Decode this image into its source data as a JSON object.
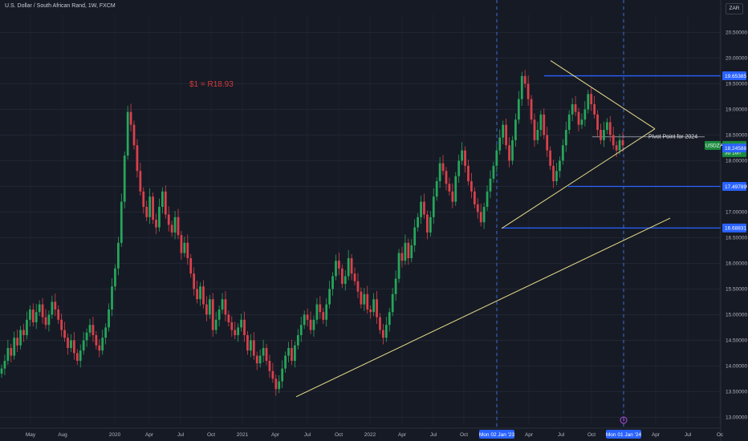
{
  "header": {
    "title": "U.S. Dollar / South African Rand, 1W, FXCM",
    "currency": "ZAR"
  },
  "colors": {
    "background": "#161a25",
    "up": "#26a65b",
    "down": "#d9414b",
    "trendline": "#e6dc8a",
    "level": "#2962ff",
    "tag": "#2962ff",
    "price_tag": "#1b8a3e",
    "annotation_red": "#d43a3a"
  },
  "chart_data": {
    "type": "candlestick",
    "ylim": [
      12.85,
      20.85
    ],
    "y_ticks": [
      "20.50000",
      "20.00000",
      "19.50000",
      "19.00000",
      "18.50000",
      "18.00000",
      "17.50000",
      "17.00000",
      "16.50000",
      "16.00000",
      "15.50000",
      "15.00000",
      "14.50000",
      "14.00000",
      "13.50000",
      "13.00000"
    ],
    "x_ticks": [
      "May",
      "Aug",
      "2020",
      "Apr",
      "Jul",
      "Oct",
      "2021",
      "Apr",
      "Jul",
      "Oct",
      "2022",
      "Apr",
      "Jul",
      "Oct",
      "Mon 02 Jan '23",
      "Apr",
      "Jul",
      "Oct",
      "Mon 01 Jan '24",
      "Apr",
      "Jul",
      "Oc"
    ],
    "highlighted_x_ticks": [
      "Mon 02 Jan '23",
      "Mon 01 Jan '24"
    ],
    "horizontal_levels": [
      19.65385,
      17.49789,
      16.68831
    ],
    "level_labels": [
      "19.65385",
      "17.49789",
      "16.68831"
    ],
    "pivot_level": 18.24588,
    "pivot_label": "18.24588",
    "current_price": {
      "symbol": "USDZAR",
      "price": "18.29735",
      "countdown": "3d 16h"
    },
    "annotations": {
      "price_note": "$1 = R18.93",
      "pivot_note": "Pivot Point for 2024"
    },
    "trendlines": [
      {
        "from": [
          "2021-06",
          13.4
        ],
        "to": [
          "2024-04",
          16.88
        ]
      },
      {
        "from": [
          "2023-02",
          16.68
        ],
        "to": [
          "2024-03",
          18.62
        ]
      },
      {
        "from": [
          "2023-06",
          19.95
        ],
        "to": [
          "2024-03",
          18.62
        ]
      }
    ],
    "candles_close": [
      13.95,
      14.1,
      14.35,
      14.2,
      14.55,
      14.4,
      14.7,
      14.6,
      14.9,
      15.1,
      14.85,
      15.05,
      15.2,
      14.95,
      14.8,
      15.0,
      15.25,
      15.1,
      14.9,
      14.7,
      14.55,
      14.35,
      14.5,
      14.25,
      14.1,
      14.3,
      14.5,
      14.65,
      14.8,
      14.6,
      14.4,
      14.3,
      14.55,
      14.75,
      15.1,
      15.55,
      15.9,
      16.4,
      17.2,
      18.1,
      18.95,
      18.7,
      18.3,
      17.8,
      17.4,
      17.1,
      16.9,
      17.3,
      16.85,
      16.7,
      17.1,
      17.4,
      16.95,
      16.75,
      16.6,
      16.9,
      16.55,
      16.2,
      16.4,
      16.1,
      15.8,
      15.5,
      15.3,
      15.55,
      15.2,
      15.0,
      15.3,
      14.7,
      14.9,
      15.1,
      15.3,
      15.0,
      14.85,
      14.7,
      14.6,
      14.75,
      14.9,
      14.6,
      14.3,
      14.5,
      14.2,
      14.05,
      14.2,
      14.35,
      14.1,
      13.9,
      13.75,
      13.55,
      13.7,
      13.95,
      14.2,
      14.35,
      14.1,
      14.4,
      14.6,
      14.8,
      15.0,
      14.9,
      14.7,
      14.9,
      15.2,
      15.05,
      14.9,
      15.2,
      15.5,
      15.75,
      16.05,
      15.9,
      15.6,
      15.75,
      16.1,
      15.8,
      15.65,
      15.45,
      15.2,
      15.4,
      15.1,
      15.05,
      15.3,
      14.95,
      14.7,
      14.55,
      14.8,
      15.05,
      15.4,
      15.7,
      16.2,
      16.05,
      16.4,
      16.1,
      16.35,
      16.7,
      16.9,
      17.2,
      16.95,
      16.6,
      16.9,
      17.3,
      17.6,
      17.95,
      17.8,
      17.55,
      17.4,
      17.2,
      17.7,
      18.0,
      18.2,
      17.9,
      17.6,
      17.4,
      17.15,
      17.0,
      16.8,
      17.1,
      17.4,
      17.65,
      17.9,
      18.2,
      18.45,
      18.7,
      18.3,
      18.0,
      18.4,
      18.8,
      19.2,
      19.65,
      19.5,
      19.2,
      18.8,
      18.4,
      18.6,
      18.9,
      18.5,
      18.2,
      17.9,
      17.6,
      17.8,
      18.0,
      18.3,
      18.6,
      18.9,
      19.1,
      18.95,
      18.7,
      18.8,
      19.0,
      19.3,
      19.1,
      18.9,
      18.6,
      18.4,
      18.6,
      18.75,
      18.5,
      18.3,
      18.2,
      18.4,
      18.29735
    ]
  }
}
